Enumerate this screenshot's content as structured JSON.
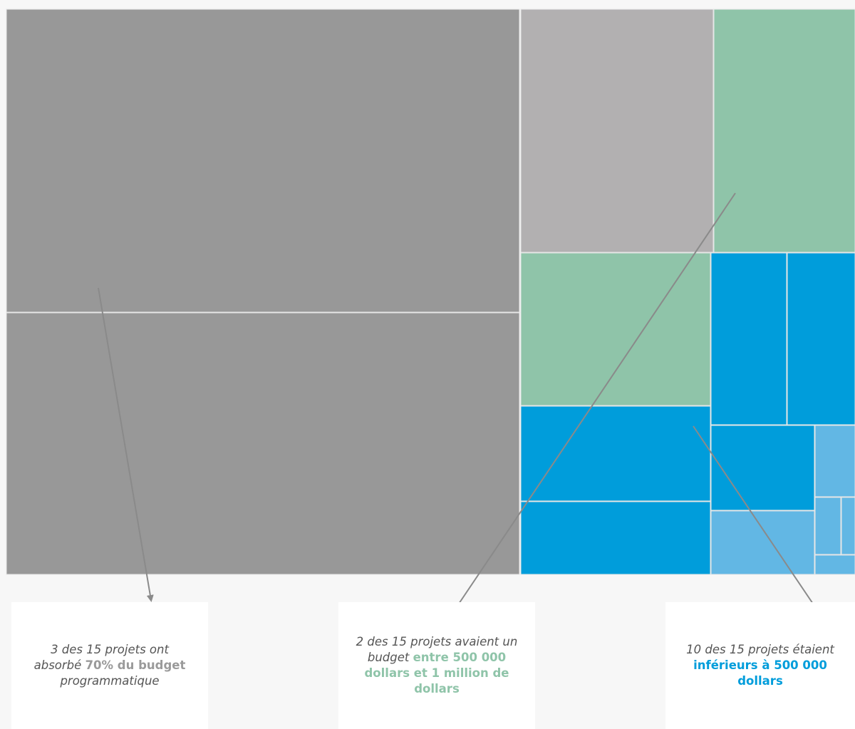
{
  "colors": {
    "large": "#989898",
    "large_light": "#b2b0b1",
    "mid": "#8fc4a9",
    "small": "#009ddb",
    "small_light": "#62b7e4",
    "arrow": "#8a8a8a"
  },
  "chart_data": {
    "type": "treemap",
    "categories": [
      {
        "key": "large",
        "label": "70% du budget",
        "count": 3
      },
      {
        "key": "mid",
        "label": "entre 500 000 dollars et 1 million de dollars",
        "count": 2
      },
      {
        "key": "small",
        "label": "inférieurs à 500 000 dollars",
        "count": 10
      }
    ],
    "total_projects": 15,
    "budget_share_large_pct": 70
  },
  "annotations": [
    {
      "pre": "3 des 15 projets ont absorbé ",
      "highlight": "70% du budget",
      "post": " programmatique"
    },
    {
      "pre": "2 des 15 projets avaient un budget ",
      "highlight": "entre 500 000 dollars et 1 million de dollars",
      "post": ""
    },
    {
      "pre": "10 des 15 projets étaient ",
      "highlight": "inférieurs à 500 000 dollars",
      "post": ""
    }
  ]
}
